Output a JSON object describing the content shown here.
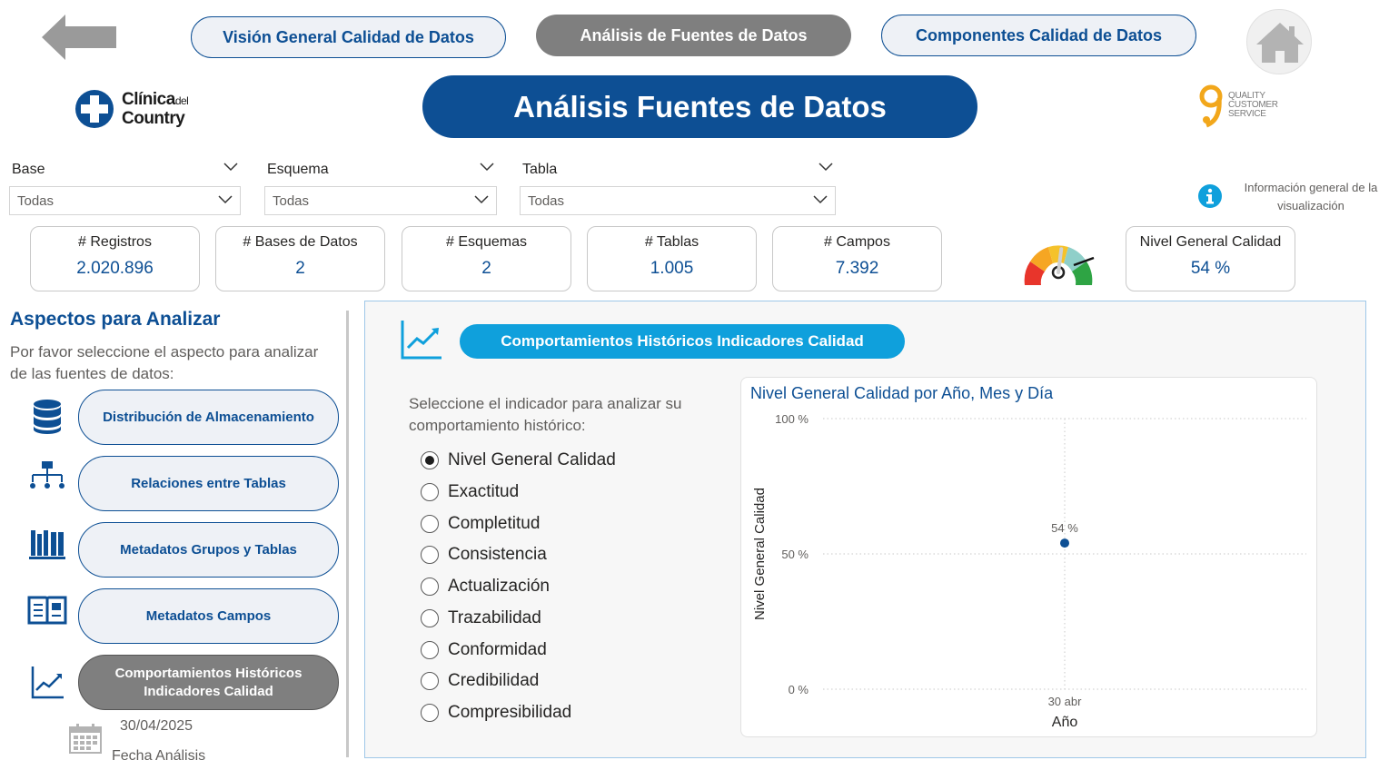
{
  "nav": {
    "tabs": [
      {
        "label": "Visión General Calidad de Datos"
      },
      {
        "label": "Análisis de Fuentes de Datos"
      },
      {
        "label": "Componentes Calidad de Datos"
      }
    ]
  },
  "brand": {
    "name_1": "Clínica",
    "name_del": "del",
    "name_2": "Country"
  },
  "partner_logo": {
    "line1": "QUALITY",
    "line2": "CUSTOMER",
    "line3": "SERVICE"
  },
  "page_title": "Análisis Fuentes de Datos",
  "filters": [
    {
      "label": "Base",
      "value": "Todas"
    },
    {
      "label": "Esquema",
      "value": "Todas"
    },
    {
      "label": "Tabla",
      "value": "Todas"
    }
  ],
  "info_text": "Información general de la visualización",
  "kpis": [
    {
      "label": "# Registros",
      "value": "2.020.896"
    },
    {
      "label": "# Bases de Datos",
      "value": "2"
    },
    {
      "label": "# Esquemas",
      "value": "2"
    },
    {
      "label": "# Tablas",
      "value": "1.005"
    },
    {
      "label": "# Campos",
      "value": "7.392"
    },
    {
      "label": "Nivel General Calidad",
      "value": "54 %"
    }
  ],
  "gauge": {
    "level": 0.54,
    "colors": [
      "#e8352b",
      "#f6a623",
      "#f5c22b",
      "#8fcfc9",
      "#2ea444"
    ]
  },
  "sidebar": {
    "title": "Aspectos para Analizar",
    "description": "Por favor seleccione el aspecto para analizar de las fuentes de datos:",
    "buttons": [
      {
        "label": "Distribución de Almacenamiento",
        "icon": "database-icon"
      },
      {
        "label": "Relaciones entre Tablas",
        "icon": "hierarchy-icon"
      },
      {
        "label": "Metadatos Grupos y Tablas",
        "icon": "books-icon"
      },
      {
        "label": "Metadatos Campos",
        "icon": "open-book-icon"
      },
      {
        "label": "Comportamientos Históricos Indicadores Calidad",
        "icon": "trend-chart-icon"
      }
    ],
    "analysis_date": "30/04/2025",
    "analysis_date_label": "Fecha Análisis"
  },
  "main": {
    "section_title": "Comportamientos Históricos Indicadores Calidad",
    "select_description": "Seleccione el indicador para analizar su comportamiento histórico:",
    "indicators": [
      {
        "label": "Nivel General Calidad",
        "checked": true
      },
      {
        "label": "Exactitud",
        "checked": false
      },
      {
        "label": "Completitud",
        "checked": false
      },
      {
        "label": "Consistencia",
        "checked": false
      },
      {
        "label": "Actualización",
        "checked": false
      },
      {
        "label": "Trazabilidad",
        "checked": false
      },
      {
        "label": "Conformidad",
        "checked": false
      },
      {
        "label": "Credibilidad",
        "checked": false
      },
      {
        "label": "Compresibilidad",
        "checked": false
      }
    ]
  },
  "chart_data": {
    "type": "scatter",
    "title": "Nivel General Calidad por Año, Mes y Día",
    "xlabel": "Año",
    "ylabel": "Nivel General Calidad",
    "x": [
      "30 abr"
    ],
    "series": [
      {
        "values": [
          54
        ],
        "data_labels": [
          "54 %"
        ],
        "color": "#0d4f94"
      }
    ],
    "ylim": [
      0,
      100
    ],
    "yticks": [
      0,
      50,
      100
    ],
    "ytick_labels": [
      "0 %",
      "50 %",
      "100 %"
    ],
    "grid": true
  },
  "colors": {
    "primary": "#0d4f94",
    "accent": "#0fa0dc",
    "active_button": "#7f7f7f"
  }
}
